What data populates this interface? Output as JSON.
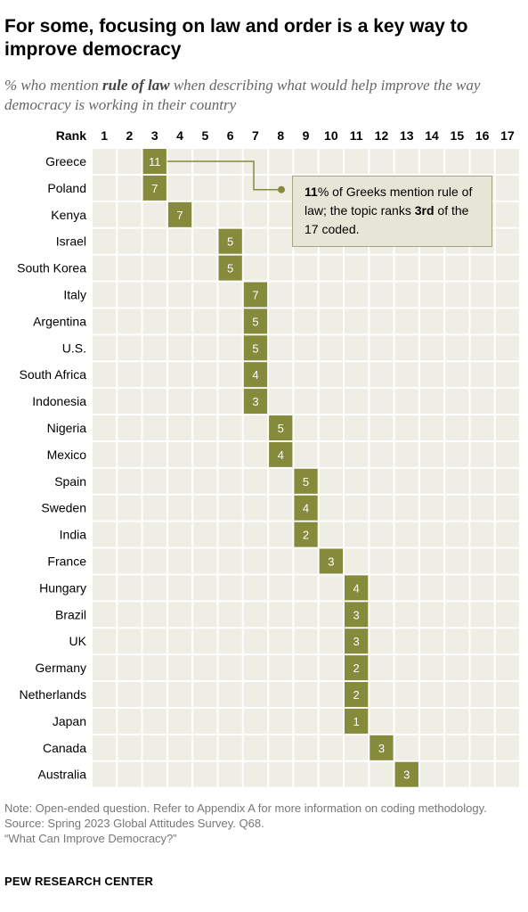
{
  "title": "For some, focusing on law and order is a key way to improve democracy",
  "subtitle": {
    "prefix": "% who mention ",
    "emphasis": "rule of law",
    "suffix": " when describing what would help improve the way democracy is working in their country"
  },
  "callout": {
    "value": "11",
    "text_a": "% of Greeks mention rule of law; the topic ranks ",
    "rank": "3rd",
    "text_b": " of the 17 coded."
  },
  "notes": [
    "Note: Open-ended question. Refer to Appendix A for more information on coding methodology.",
    "Source: Spring 2023 Global Attitudes Survey. Q68.",
    "“What Can Improve Democracy?”"
  ],
  "source_name": "PEW RESEARCH CENTER",
  "colors": {
    "cell_bg": "#efeee4",
    "marker": "#868a3b",
    "marker_text": "#ffffff",
    "leader_line": "#868a3b"
  },
  "chart_data": {
    "type": "table",
    "column_header_label": "Rank",
    "ranks": [
      1,
      2,
      3,
      4,
      5,
      6,
      7,
      8,
      9,
      10,
      11,
      12,
      13,
      14,
      15,
      16,
      17
    ],
    "rows": [
      {
        "country": "Greece",
        "rank": 3,
        "percent": 11
      },
      {
        "country": "Poland",
        "rank": 3,
        "percent": 7
      },
      {
        "country": "Kenya",
        "rank": 4,
        "percent": 7
      },
      {
        "country": "Israel",
        "rank": 6,
        "percent": 5
      },
      {
        "country": "South Korea",
        "rank": 6,
        "percent": 5
      },
      {
        "country": "Italy",
        "rank": 7,
        "percent": 7
      },
      {
        "country": "Argentina",
        "rank": 7,
        "percent": 5
      },
      {
        "country": "U.S.",
        "rank": 7,
        "percent": 5
      },
      {
        "country": "South Africa",
        "rank": 7,
        "percent": 4
      },
      {
        "country": "Indonesia",
        "rank": 7,
        "percent": 3
      },
      {
        "country": "Nigeria",
        "rank": 8,
        "percent": 5
      },
      {
        "country": "Mexico",
        "rank": 8,
        "percent": 4
      },
      {
        "country": "Spain",
        "rank": 9,
        "percent": 5
      },
      {
        "country": "Sweden",
        "rank": 9,
        "percent": 4
      },
      {
        "country": "India",
        "rank": 9,
        "percent": 2
      },
      {
        "country": "France",
        "rank": 10,
        "percent": 3
      },
      {
        "country": "Hungary",
        "rank": 11,
        "percent": 4
      },
      {
        "country": "Brazil",
        "rank": 11,
        "percent": 3
      },
      {
        "country": "UK",
        "rank": 11,
        "percent": 3
      },
      {
        "country": "Germany",
        "rank": 11,
        "percent": 2
      },
      {
        "country": "Netherlands",
        "rank": 11,
        "percent": 2
      },
      {
        "country": "Japan",
        "rank": 11,
        "percent": 1
      },
      {
        "country": "Canada",
        "rank": 12,
        "percent": 3
      },
      {
        "country": "Australia",
        "rank": 13,
        "percent": 3
      }
    ]
  }
}
